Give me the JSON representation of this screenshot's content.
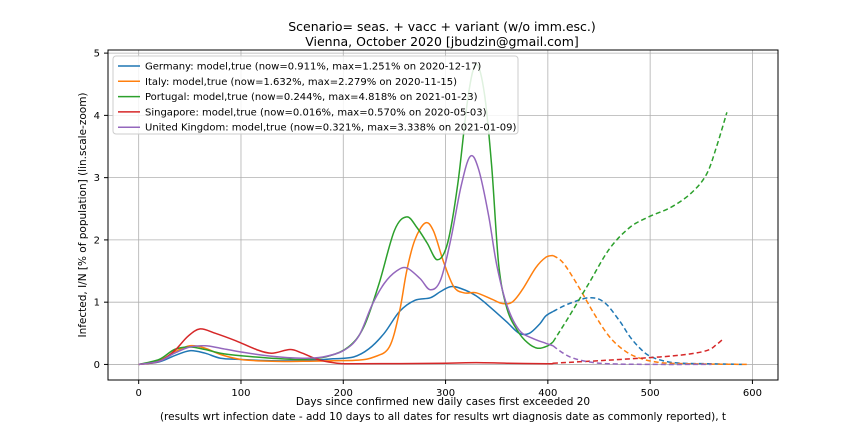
{
  "chart_data": {
    "type": "line",
    "title": "Scenario= seas. + vacc + variant (w/o imm.esc.)",
    "subtitle": "Vienna, October 2020 [jbudzin@gmail.com]",
    "xlabel_line1": "Days since confirmed new daily cases first exceeded 20",
    "xlabel_line2": "(results wrt infection date - add 10 days to all dates for results wrt diagnosis date as commonly reported), t",
    "ylabel": "Infected, I/N [% of population] (lin.scale-zoom)",
    "xlim": [
      -30,
      625
    ],
    "ylim": [
      -0.25,
      5.05
    ],
    "xticks": [
      0,
      100,
      200,
      300,
      400,
      500,
      600
    ],
    "yticks": [
      0,
      1,
      2,
      3,
      4,
      5
    ],
    "grid": true,
    "legend_position": "top-left",
    "series": [
      {
        "name": "Germany: model,true (now=0.911%, max=1.251% on 2020-12-17)",
        "color": "#1f77b4",
        "solid": [
          [
            0,
            0
          ],
          [
            20,
            0.04
          ],
          [
            35,
            0.14
          ],
          [
            50,
            0.22
          ],
          [
            65,
            0.18
          ],
          [
            80,
            0.1
          ],
          [
            100,
            0.08
          ],
          [
            130,
            0.06
          ],
          [
            160,
            0.06
          ],
          [
            190,
            0.09
          ],
          [
            210,
            0.12
          ],
          [
            225,
            0.25
          ],
          [
            240,
            0.5
          ],
          [
            255,
            0.85
          ],
          [
            270,
            1.03
          ],
          [
            285,
            1.07
          ],
          [
            295,
            1.17
          ],
          [
            305,
            1.25
          ],
          [
            315,
            1.22
          ],
          [
            330,
            1.1
          ],
          [
            345,
            0.9
          ],
          [
            360,
            0.68
          ],
          [
            372,
            0.5
          ],
          [
            382,
            0.5
          ],
          [
            392,
            0.65
          ],
          [
            398,
            0.78
          ],
          [
            405,
            0.85
          ]
        ],
        "dashed": [
          [
            405,
            0.85
          ],
          [
            420,
            0.97
          ],
          [
            440,
            1.07
          ],
          [
            455,
            1.0
          ],
          [
            470,
            0.7
          ],
          [
            480,
            0.45
          ],
          [
            490,
            0.26
          ],
          [
            500,
            0.13
          ],
          [
            515,
            0.05
          ],
          [
            530,
            0.02
          ],
          [
            560,
            0.01
          ],
          [
            590,
            0
          ]
        ]
      },
      {
        "name": "Italy: model,true (now=1.632%, max=2.279% on 2020-11-15)",
        "color": "#ff7f0e",
        "solid": [
          [
            0,
            0
          ],
          [
            20,
            0.06
          ],
          [
            35,
            0.2
          ],
          [
            50,
            0.3
          ],
          [
            65,
            0.26
          ],
          [
            80,
            0.16
          ],
          [
            100,
            0.08
          ],
          [
            130,
            0.05
          ],
          [
            160,
            0.05
          ],
          [
            190,
            0.06
          ],
          [
            215,
            0.07
          ],
          [
            230,
            0.12
          ],
          [
            245,
            0.28
          ],
          [
            255,
            0.85
          ],
          [
            262,
            1.5
          ],
          [
            270,
            2.0
          ],
          [
            280,
            2.27
          ],
          [
            288,
            2.15
          ],
          [
            298,
            1.65
          ],
          [
            308,
            1.25
          ],
          [
            318,
            1.15
          ],
          [
            330,
            1.15
          ],
          [
            345,
            1.05
          ],
          [
            355,
            0.98
          ],
          [
            365,
            1.0
          ],
          [
            375,
            1.2
          ],
          [
            388,
            1.55
          ],
          [
            398,
            1.72
          ],
          [
            405,
            1.75
          ]
        ],
        "dashed": [
          [
            405,
            1.75
          ],
          [
            415,
            1.63
          ],
          [
            430,
            1.25
          ],
          [
            445,
            0.82
          ],
          [
            460,
            0.45
          ],
          [
            475,
            0.22
          ],
          [
            490,
            0.1
          ],
          [
            510,
            0.03
          ],
          [
            540,
            0.01
          ],
          [
            595,
            0
          ]
        ]
      },
      {
        "name": "Portugal: model,true (now=0.244%, max=4.818% on 2021-01-23)",
        "color": "#2ca02c",
        "solid": [
          [
            0,
            0
          ],
          [
            20,
            0.08
          ],
          [
            35,
            0.24
          ],
          [
            50,
            0.28
          ],
          [
            65,
            0.24
          ],
          [
            80,
            0.18
          ],
          [
            100,
            0.14
          ],
          [
            130,
            0.1
          ],
          [
            160,
            0.08
          ],
          [
            185,
            0.13
          ],
          [
            205,
            0.28
          ],
          [
            220,
            0.6
          ],
          [
            235,
            1.3
          ],
          [
            250,
            2.15
          ],
          [
            262,
            2.37
          ],
          [
            272,
            2.2
          ],
          [
            282,
            1.95
          ],
          [
            292,
            1.68
          ],
          [
            302,
            1.95
          ],
          [
            312,
            2.9
          ],
          [
            322,
            4.3
          ],
          [
            330,
            4.82
          ],
          [
            338,
            4.35
          ],
          [
            345,
            3.2
          ],
          [
            352,
            1.6
          ],
          [
            360,
            0.9
          ],
          [
            370,
            0.55
          ],
          [
            380,
            0.35
          ],
          [
            390,
            0.26
          ],
          [
            400,
            0.3
          ],
          [
            405,
            0.36
          ]
        ],
        "dashed": [
          [
            405,
            0.36
          ],
          [
            420,
            0.75
          ],
          [
            440,
            1.3
          ],
          [
            460,
            1.85
          ],
          [
            480,
            2.2
          ],
          [
            500,
            2.38
          ],
          [
            520,
            2.52
          ],
          [
            540,
            2.75
          ],
          [
            555,
            3.05
          ],
          [
            565,
            3.5
          ],
          [
            575,
            4.05
          ]
        ]
      },
      {
        "name": "Singapore: model,true (now=0.016%, max=0.570% on 2020-05-03)",
        "color": "#d62728",
        "solid": [
          [
            0,
            0
          ],
          [
            20,
            0.05
          ],
          [
            35,
            0.22
          ],
          [
            48,
            0.45
          ],
          [
            60,
            0.57
          ],
          [
            75,
            0.5
          ],
          [
            95,
            0.38
          ],
          [
            115,
            0.24
          ],
          [
            130,
            0.18
          ],
          [
            148,
            0.24
          ],
          [
            160,
            0.18
          ],
          [
            175,
            0.08
          ],
          [
            190,
            0.03
          ],
          [
            210,
            0.01
          ],
          [
            300,
            0.02
          ],
          [
            330,
            0.03
          ],
          [
            360,
            0.02
          ],
          [
            400,
            0.01
          ],
          [
            405,
            0.02
          ]
        ],
        "dashed": [
          [
            405,
            0.02
          ],
          [
            440,
            0.05
          ],
          [
            470,
            0.08
          ],
          [
            500,
            0.11
          ],
          [
            530,
            0.15
          ],
          [
            555,
            0.22
          ],
          [
            565,
            0.32
          ],
          [
            572,
            0.42
          ]
        ]
      },
      {
        "name": "United Kingdom: model,true (now=0.321%, max=3.338% on 2021-01-09)",
        "color": "#9467bd",
        "solid": [
          [
            0,
            0
          ],
          [
            20,
            0.05
          ],
          [
            35,
            0.18
          ],
          [
            50,
            0.28
          ],
          [
            65,
            0.3
          ],
          [
            80,
            0.26
          ],
          [
            100,
            0.2
          ],
          [
            130,
            0.13
          ],
          [
            160,
            0.1
          ],
          [
            180,
            0.12
          ],
          [
            200,
            0.22
          ],
          [
            215,
            0.45
          ],
          [
            228,
            0.95
          ],
          [
            240,
            1.3
          ],
          [
            252,
            1.5
          ],
          [
            262,
            1.55
          ],
          [
            275,
            1.38
          ],
          [
            285,
            1.2
          ],
          [
            295,
            1.35
          ],
          [
            305,
            2.0
          ],
          [
            315,
            2.85
          ],
          [
            324,
            3.34
          ],
          [
            332,
            3.15
          ],
          [
            342,
            2.4
          ],
          [
            350,
            1.6
          ],
          [
            360,
            0.95
          ],
          [
            372,
            0.55
          ],
          [
            385,
            0.42
          ],
          [
            398,
            0.34
          ],
          [
            405,
            0.3
          ]
        ],
        "dashed": [
          [
            405,
            0.3
          ],
          [
            415,
            0.18
          ],
          [
            425,
            0.1
          ],
          [
            440,
            0.04
          ],
          [
            460,
            0.01
          ],
          [
            500,
            0
          ],
          [
            560,
            0
          ]
        ]
      }
    ]
  }
}
